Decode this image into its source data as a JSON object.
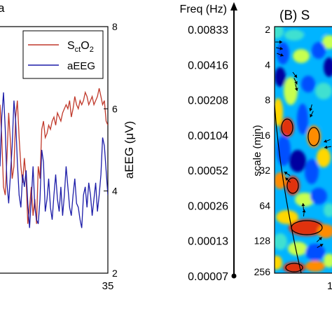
{
  "chart_data": [
    {
      "type": "line",
      "panel_label": "a",
      "title": "",
      "xlabel": "",
      "ylabel_right": "aEEG (μV)",
      "xlim": [
        0,
        35
      ],
      "y_right_lim": [
        2,
        8
      ],
      "right_ticks": [
        "2",
        "4",
        "6",
        "8"
      ],
      "x_ticks_visible": [
        "35"
      ],
      "legend": {
        "position": "top-right",
        "entries": [
          {
            "label_base": "S",
            "label_sub1": "ct",
            "label_mid": "O",
            "label_sub2": "2",
            "color": "#c0392b"
          },
          {
            "label_base": "aEEG",
            "label_sub1": "",
            "label_mid": "",
            "label_sub2": "",
            "color": "#1c1ca8"
          }
        ]
      },
      "x": [
        16.4,
        16.7,
        17.0,
        17.3,
        17.6,
        17.9,
        18.2,
        18.5,
        18.8,
        19.1,
        19.4,
        19.7,
        20.0,
        20.3,
        20.6,
        20.9,
        21.2,
        21.5,
        21.8,
        22.1,
        22.4,
        22.7,
        23.0,
        23.3,
        23.6,
        23.9,
        24.2,
        24.5,
        24.8,
        25.1,
        25.4,
        25.7,
        26.0,
        26.3,
        26.6,
        26.9,
        27.2,
        27.5,
        27.8,
        28.1,
        28.4,
        28.7,
        29.0,
        29.3,
        29.6,
        29.9,
        30.2,
        30.5,
        30.8,
        31.1,
        31.4,
        31.7,
        32.0,
        32.3,
        32.6,
        32.9,
        33.2,
        33.5,
        33.8,
        34.1,
        34.4,
        34.7,
        35.0
      ],
      "series": [
        {
          "name": "",
          "axis": "right",
          "color": "#c0392b",
          "values": [
            6.1,
            5.3,
            4.1,
            3.9,
            4.8,
            5.9,
            5.2,
            4.3,
            4.6,
            5.8,
            6.2,
            5.3,
            4.6,
            4.2,
            4.8,
            4.3,
            3.2,
            3.6,
            4.1,
            3.4,
            3.8,
            3.2,
            4.6,
            4.3,
            5.5,
            5.7,
            5.3,
            5.4,
            5.6,
            5.5,
            5.7,
            5.8,
            5.6,
            5.9,
            5.8,
            5.7,
            5.9,
            6.0,
            6.1,
            6.0,
            6.2,
            5.8,
            6.0,
            6.3,
            6.1,
            6.0,
            6.2,
            6.1,
            6.2,
            6.4,
            6.3,
            6.1,
            6.2,
            6.3,
            6.1,
            6.2,
            6.3,
            6.5,
            6.3,
            6.1,
            6.2,
            5.7,
            5.6
          ]
        },
        {
          "name": "",
          "axis": "right",
          "color": "#1c1ca8",
          "values": [
            4.6,
            5.8,
            6.4,
            5.5,
            4.2,
            3.7,
            4.4,
            5.1,
            6.2,
            5.7,
            4.7,
            3.9,
            3.6,
            4.4,
            4.1,
            4.5,
            3.7,
            3.1,
            3.8,
            4.6,
            3.6,
            3.3,
            3.2,
            3.8,
            5.0,
            4.7,
            3.5,
            3.8,
            4.3,
            3.6,
            3.3,
            3.9,
            4.4,
            3.8,
            3.5,
            4.1,
            3.4,
            3.9,
            4.6,
            4.1,
            3.6,
            3.4,
            3.9,
            4.3,
            3.7,
            3.6,
            3.3,
            3.1,
            3.9,
            4.1,
            3.6,
            4.2,
            3.9,
            3.4,
            3.8,
            4.2,
            3.5,
            3.9,
            4.4,
            5.3,
            5.1,
            4.5,
            3.9
          ]
        }
      ]
    },
    {
      "type": "heatmap",
      "panel_label": "(B) S",
      "freq_axis_title": "Freq (Hz)",
      "ylabel": "scale (min)",
      "scale_ticks": [
        "2",
        "4",
        "8",
        "16",
        "32",
        "64",
        "128",
        "256"
      ],
      "freq_ticks": [
        "0.00833",
        "0.00416",
        "0.00208",
        "0.00104",
        "0.00052",
        "0.00026",
        "0.00013",
        "0.00007"
      ],
      "x_ticks_visible": [
        "1"
      ],
      "colormap": [
        "#0000a0",
        "#0050ff",
        "#00b4ff",
        "#40e0d0",
        "#c8ff50",
        "#ffd700",
        "#ff8c00",
        "#e03010"
      ]
    }
  ]
}
